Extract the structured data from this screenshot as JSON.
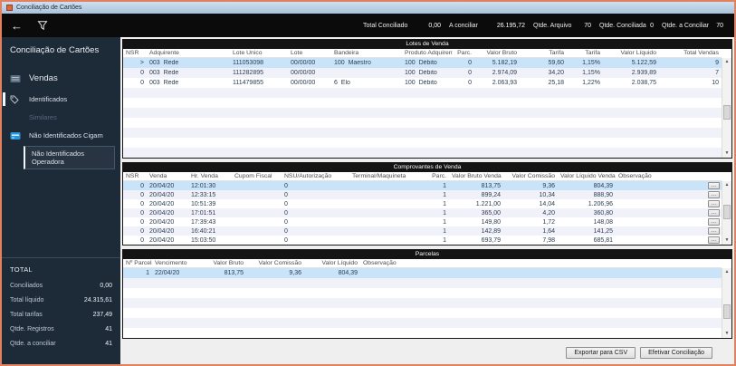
{
  "window": {
    "title": "Conciliação de Cartões"
  },
  "toolbar": {
    "back_icon": "←",
    "filter_icon": "funnel",
    "stats": [
      {
        "label": "Total Conciliado",
        "value": "0,00"
      },
      {
        "label": "A conciliar",
        "value": "26.195,72"
      },
      {
        "label": "Qtde. Arquivo",
        "value": "70"
      },
      {
        "label": "Qtde. Conciliada",
        "value": "0"
      },
      {
        "label": "Qtde. a Conciliar",
        "value": "70"
      }
    ]
  },
  "sidebar": {
    "title": "Conciliação de Cartões",
    "section": "Vendas",
    "items": [
      {
        "label": "Identificados",
        "icon": "tag-icon",
        "state": "indicator"
      },
      {
        "label": "Similares",
        "icon": "",
        "state": "dimmed"
      },
      {
        "label": "Não Identificados Cigam",
        "icon": "card-icon",
        "state": ""
      },
      {
        "label": "Não Identificados Operadora",
        "icon": "",
        "state": "selected"
      }
    ],
    "totals": {
      "title": "TOTAL",
      "rows": [
        {
          "label": "Conciliados",
          "value": "0,00"
        },
        {
          "label": "Total líquido",
          "value": "24.315,61"
        },
        {
          "label": "Total tarifas",
          "value": "237,49"
        },
        {
          "label": "Qtde. Registros",
          "value": "41"
        },
        {
          "label": "Qtde. a conciliar",
          "value": "41"
        }
      ]
    }
  },
  "tables": {
    "lotes": {
      "title": "Lotes de Venda",
      "columns": [
        "NSR",
        "Adquirente",
        "Lote Único",
        "Lote",
        "Bandeira",
        "Produto Adquirente",
        "Parc.",
        "Valor Bruto",
        "Tarifa",
        "Tarifa",
        "Valor Líquido",
        "Total Vendas"
      ],
      "selected_row": 0,
      "rows": [
        [
          "",
          "003  Rede",
          "111053098",
          "00/00/00",
          "100  Maestro",
          "100  Débito",
          "0",
          "5.182,19",
          "59,60",
          "1,15%",
          "5.122,59",
          "9"
        ],
        [
          "0",
          "003  Rede",
          "111282895",
          "00/00/00",
          "",
          "100  Débito",
          "0",
          "2.974,09",
          "34,20",
          "1,15%",
          "2.939,89",
          "7"
        ],
        [
          "0",
          "003  Rede",
          "111479855",
          "00/00/00",
          "6  Elo",
          "100  Débito",
          "0",
          "2.063,93",
          "25,18",
          "1,22%",
          "2.038,75",
          "10"
        ]
      ]
    },
    "comprovantes": {
      "title": "Comprovantes de Venda",
      "columns": [
        "NSR",
        "Venda",
        "Hr. Venda",
        "Cupom Fiscal",
        "NSU/Autorização",
        "Terminal/Maquineta",
        "Parc.",
        "Valor Bruto Venda",
        "Valor Comissão",
        "Valor Líquido Venda",
        "Observação"
      ],
      "selected_row": 0,
      "rows": [
        [
          "0",
          "20/04/20",
          "12:01:30",
          "",
          "0",
          "",
          "1",
          "813,75",
          "9,36",
          "804,39",
          ""
        ],
        [
          "0",
          "20/04/20",
          "12:33:15",
          "",
          "0",
          "",
          "1",
          "899,24",
          "10,34",
          "888,90",
          ""
        ],
        [
          "0",
          "20/04/20",
          "10:51:39",
          "",
          "0",
          "",
          "1",
          "1.221,00",
          "14,04",
          "1.206,96",
          ""
        ],
        [
          "0",
          "20/04/20",
          "17:01:51",
          "",
          "0",
          "",
          "1",
          "365,00",
          "4,20",
          "360,80",
          ""
        ],
        [
          "0",
          "20/04/20",
          "17:39:43",
          "",
          "0",
          "",
          "1",
          "149,80",
          "1,72",
          "148,08",
          ""
        ],
        [
          "0",
          "20/04/20",
          "16:40:21",
          "",
          "0",
          "",
          "1",
          "142,89",
          "1,64",
          "141,25",
          ""
        ],
        [
          "0",
          "20/04/20",
          "15:03:50",
          "",
          "0",
          "",
          "1",
          "693,79",
          "7,98",
          "685,81",
          ""
        ]
      ]
    },
    "parcelas": {
      "title": "Parcelas",
      "columns": [
        "Nº Parcela",
        "Vencimento",
        "Valor Bruto",
        "Valor Comissão",
        "Valor Líquido",
        "Observação"
      ],
      "selected_row": 0,
      "rows": [
        [
          "1",
          "22/04/20",
          "813,75",
          "9,36",
          "804,39",
          ""
        ]
      ]
    }
  },
  "footer": {
    "export_csv": "Exportar para CSV",
    "efetivar": "Efetivar Conciliação"
  },
  "colors": {
    "accent_blue": "#2a96dc",
    "selected_row": "#c9e3f8",
    "window_border": "#e2815f",
    "sidebar_bg": "#1d2a38"
  }
}
